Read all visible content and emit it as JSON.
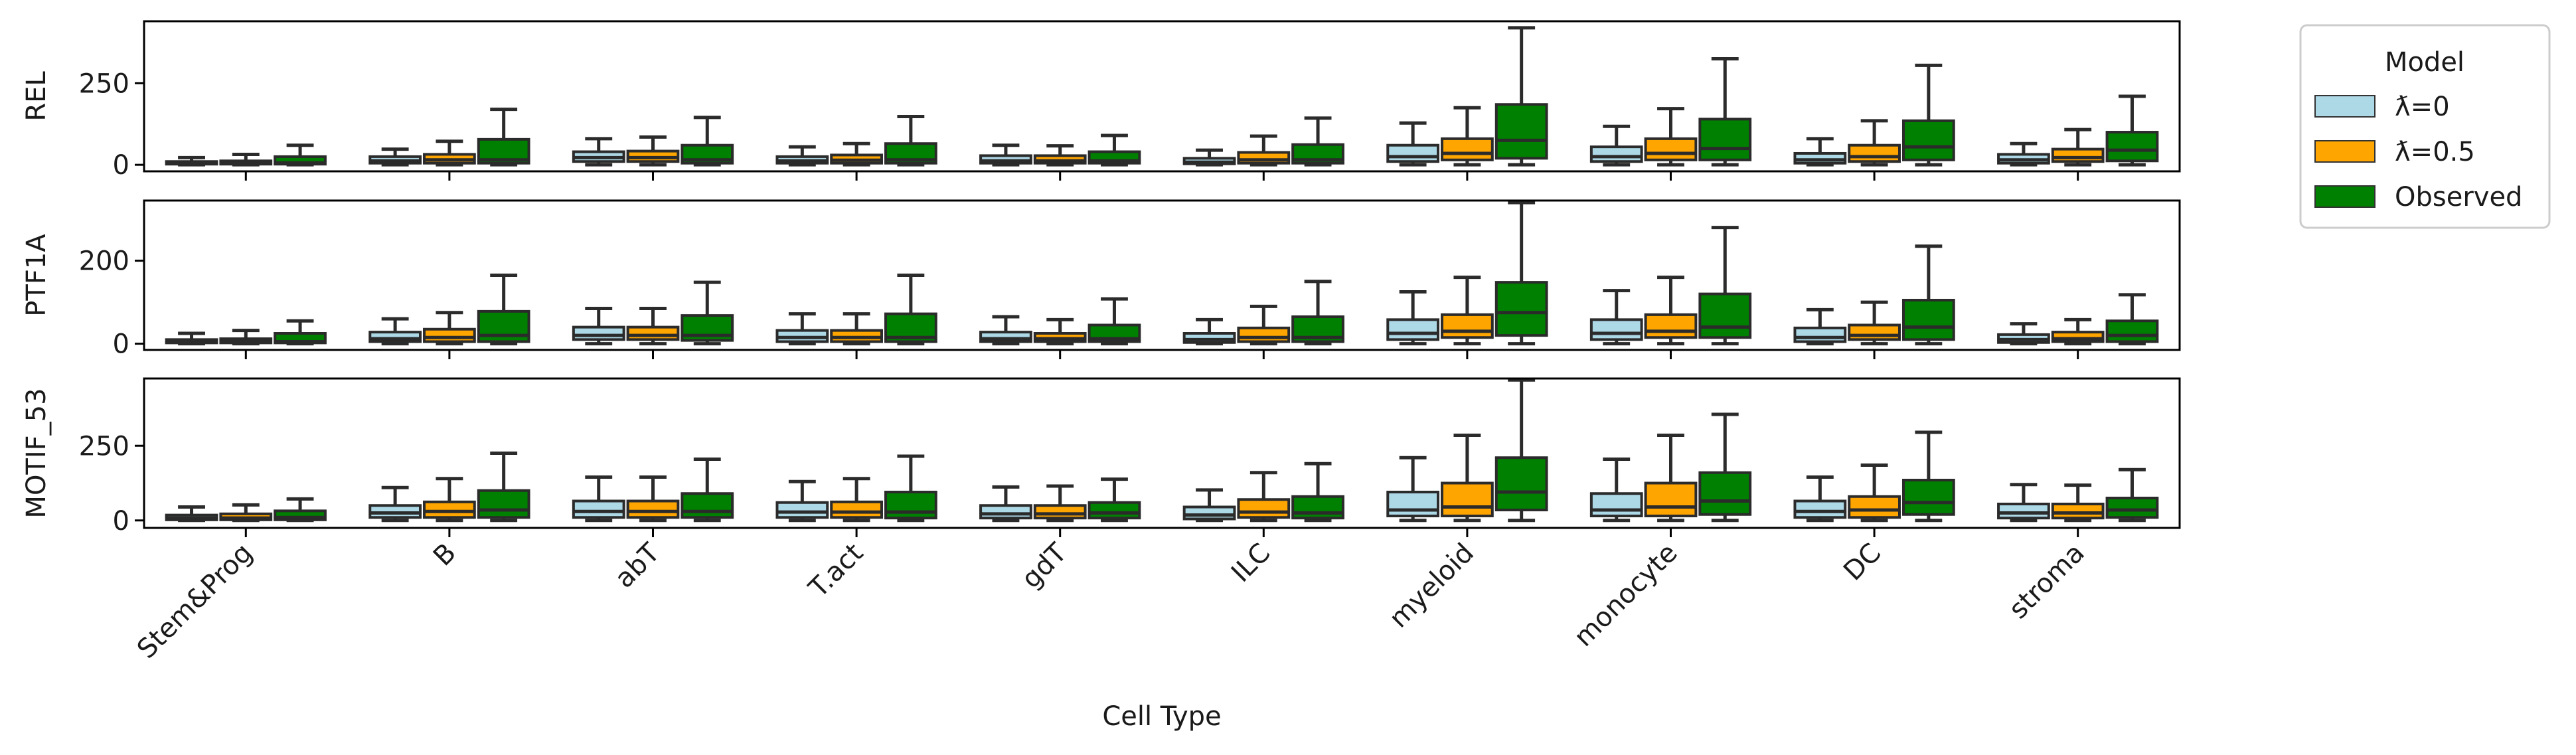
{
  "chart_data": {
    "type": "box",
    "xlabel": "Cell Type",
    "categories": [
      "Stem&Prog",
      "B",
      "abT",
      "T.act",
      "gdT",
      "ILC",
      "myeloid",
      "monocyte",
      "DC",
      "stroma"
    ],
    "legend": {
      "title": "Model",
      "position": "outside-right-top",
      "entries": [
        {
          "label": "ƛ=0",
          "color": "#add8e6"
        },
        {
          "label": "ƛ=0.5",
          "color": "#ffa500"
        },
        {
          "label": "Observed",
          "color": "#008000"
        }
      ]
    },
    "panels": [
      {
        "ylabel": "REL",
        "ylim": [
          -20,
          440
        ],
        "yticks": [
          0,
          250
        ],
        "series": [
          {
            "name": "ƛ=0",
            "color": "#add8e6",
            "boxes": [
              {
                "whislo": 0,
                "q1": 2,
                "med": 5,
                "q3": 10,
                "whishi": 22
              },
              {
                "whislo": 0,
                "q1": 5,
                "med": 12,
                "q3": 25,
                "whishi": 48
              },
              {
                "whislo": 0,
                "q1": 10,
                "med": 22,
                "q3": 40,
                "whishi": 80
              },
              {
                "whislo": 0,
                "q1": 5,
                "med": 12,
                "q3": 25,
                "whishi": 55
              },
              {
                "whislo": 0,
                "q1": 5,
                "med": 12,
                "q3": 28,
                "whishi": 60
              },
              {
                "whislo": 0,
                "q1": 3,
                "med": 8,
                "q3": 20,
                "whishi": 45
              },
              {
                "whislo": 0,
                "q1": 10,
                "med": 25,
                "q3": 60,
                "whishi": 128
              },
              {
                "whislo": 0,
                "q1": 10,
                "med": 25,
                "q3": 55,
                "whishi": 118
              },
              {
                "whislo": 0,
                "q1": 5,
                "med": 15,
                "q3": 35,
                "whishi": 80
              },
              {
                "whislo": 0,
                "q1": 5,
                "med": 15,
                "q3": 32,
                "whishi": 65
              }
            ]
          },
          {
            "name": "ƛ=0.5",
            "color": "#ffa500",
            "boxes": [
              {
                "whislo": 0,
                "q1": 2,
                "med": 5,
                "q3": 12,
                "whishi": 32
              },
              {
                "whislo": 0,
                "q1": 5,
                "med": 15,
                "q3": 32,
                "whishi": 72
              },
              {
                "whislo": 0,
                "q1": 10,
                "med": 22,
                "q3": 42,
                "whishi": 85
              },
              {
                "whislo": 0,
                "q1": 5,
                "med": 14,
                "q3": 30,
                "whishi": 65
              },
              {
                "whislo": 0,
                "q1": 5,
                "med": 12,
                "q3": 28,
                "whishi": 58
              },
              {
                "whislo": 0,
                "q1": 5,
                "med": 15,
                "q3": 38,
                "whishi": 88
              },
              {
                "whislo": 0,
                "q1": 15,
                "med": 35,
                "q3": 80,
                "whishi": 175
              },
              {
                "whislo": 0,
                "q1": 15,
                "med": 35,
                "q3": 80,
                "whishi": 172
              },
              {
                "whislo": 0,
                "q1": 10,
                "med": 25,
                "q3": 60,
                "whishi": 135
              },
              {
                "whislo": 0,
                "q1": 10,
                "med": 22,
                "q3": 48,
                "whishi": 108
              }
            ]
          },
          {
            "name": "Observed",
            "color": "#008000",
            "boxes": [
              {
                "whislo": 0,
                "q1": 2,
                "med": 6,
                "q3": 25,
                "whishi": 60
              },
              {
                "whislo": 0,
                "q1": 5,
                "med": 15,
                "q3": 78,
                "whishi": 170
              },
              {
                "whislo": 0,
                "q1": 5,
                "med": 15,
                "q3": 60,
                "whishi": 145
              },
              {
                "whislo": 0,
                "q1": 5,
                "med": 15,
                "q3": 65,
                "whishi": 148
              },
              {
                "whislo": 0,
                "q1": 5,
                "med": 12,
                "q3": 40,
                "whishi": 90
              },
              {
                "whislo": 0,
                "q1": 5,
                "med": 15,
                "q3": 62,
                "whishi": 143
              },
              {
                "whislo": 0,
                "q1": 20,
                "med": 75,
                "q3": 185,
                "whishi": 420
              },
              {
                "whislo": 0,
                "q1": 15,
                "med": 50,
                "q3": 140,
                "whishi": 325
              },
              {
                "whislo": 0,
                "q1": 15,
                "med": 55,
                "q3": 135,
                "whishi": 305
              },
              {
                "whislo": 0,
                "q1": 12,
                "med": 45,
                "q3": 100,
                "whishi": 210
              }
            ]
          }
        ]
      },
      {
        "ylabel": "PTF1A",
        "ylim": [
          -15,
          345
        ],
        "yticks": [
          0,
          200
        ],
        "series": [
          {
            "name": "ƛ=0",
            "color": "#add8e6",
            "boxes": [
              {
                "whislo": 0,
                "q1": 2,
                "med": 5,
                "q3": 10,
                "whishi": 25
              },
              {
                "whislo": 0,
                "q1": 5,
                "med": 12,
                "q3": 28,
                "whishi": 60
              },
              {
                "whislo": 0,
                "q1": 10,
                "med": 20,
                "q3": 40,
                "whishi": 85
              },
              {
                "whislo": 0,
                "q1": 5,
                "med": 15,
                "q3": 32,
                "whishi": 72
              },
              {
                "whislo": 0,
                "q1": 5,
                "med": 12,
                "q3": 28,
                "whishi": 65
              },
              {
                "whislo": 0,
                "q1": 3,
                "med": 10,
                "q3": 25,
                "whishi": 58
              },
              {
                "whislo": 0,
                "q1": 10,
                "med": 25,
                "q3": 58,
                "whishi": 125
              },
              {
                "whislo": 0,
                "q1": 10,
                "med": 25,
                "q3": 58,
                "whishi": 128
              },
              {
                "whislo": 0,
                "q1": 5,
                "med": 15,
                "q3": 38,
                "whishi": 82
              },
              {
                "whislo": 0,
                "q1": 3,
                "med": 10,
                "q3": 22,
                "whishi": 48
              }
            ]
          },
          {
            "name": "ƛ=0.5",
            "color": "#ffa500",
            "boxes": [
              {
                "whislo": 0,
                "q1": 2,
                "med": 5,
                "q3": 12,
                "whishi": 32
              },
              {
                "whislo": 0,
                "q1": 5,
                "med": 15,
                "q3": 35,
                "whishi": 75
              },
              {
                "whislo": 0,
                "q1": 10,
                "med": 20,
                "q3": 40,
                "whishi": 85
              },
              {
                "whislo": 0,
                "q1": 5,
                "med": 15,
                "q3": 32,
                "whishi": 72
              },
              {
                "whislo": 0,
                "q1": 5,
                "med": 12,
                "q3": 25,
                "whishi": 58
              },
              {
                "whislo": 0,
                "q1": 5,
                "med": 15,
                "q3": 38,
                "whishi": 90
              },
              {
                "whislo": 0,
                "q1": 15,
                "med": 30,
                "q3": 70,
                "whishi": 160
              },
              {
                "whislo": 0,
                "q1": 15,
                "med": 30,
                "q3": 70,
                "whishi": 160
              },
              {
                "whislo": 0,
                "q1": 10,
                "med": 20,
                "q3": 45,
                "whishi": 100
              },
              {
                "whislo": 0,
                "q1": 5,
                "med": 12,
                "q3": 28,
                "whishi": 58
              }
            ]
          },
          {
            "name": "Observed",
            "color": "#008000",
            "boxes": [
              {
                "whislo": 0,
                "q1": 2,
                "med": 5,
                "q3": 25,
                "whishi": 55
              },
              {
                "whislo": 0,
                "q1": 5,
                "med": 20,
                "q3": 78,
                "whishi": 165
              },
              {
                "whislo": 0,
                "q1": 8,
                "med": 20,
                "q3": 68,
                "whishi": 148
              },
              {
                "whislo": 0,
                "q1": 5,
                "med": 15,
                "q3": 72,
                "whishi": 165
              },
              {
                "whislo": 0,
                "q1": 5,
                "med": 12,
                "q3": 45,
                "whishi": 108
              },
              {
                "whislo": 0,
                "q1": 5,
                "med": 15,
                "q3": 65,
                "whishi": 150
              },
              {
                "whislo": 0,
                "q1": 20,
                "med": 75,
                "q3": 148,
                "whishi": 340
              },
              {
                "whislo": 0,
                "q1": 15,
                "med": 40,
                "q3": 120,
                "whishi": 280
              },
              {
                "whislo": 0,
                "q1": 10,
                "med": 40,
                "q3": 105,
                "whishi": 235
              },
              {
                "whislo": 0,
                "q1": 5,
                "med": 20,
                "q3": 55,
                "whishi": 118
              }
            ]
          }
        ]
      },
      {
        "ylabel": "MOTIF_53",
        "ylim": [
          -25,
          475
        ],
        "yticks": [
          0,
          250
        ],
        "series": [
          {
            "name": "ƛ=0",
            "color": "#add8e6",
            "boxes": [
              {
                "whislo": 0,
                "q1": 2,
                "med": 8,
                "q3": 18,
                "whishi": 45
              },
              {
                "whislo": 0,
                "q1": 10,
                "med": 25,
                "q3": 50,
                "whishi": 110
              },
              {
                "whislo": 0,
                "q1": 10,
                "med": 30,
                "q3": 65,
                "whishi": 145
              },
              {
                "whislo": 0,
                "q1": 10,
                "med": 28,
                "q3": 60,
                "whishi": 130
              },
              {
                "whislo": 0,
                "q1": 8,
                "med": 22,
                "q3": 50,
                "whishi": 112
              },
              {
                "whislo": 0,
                "q1": 5,
                "med": 18,
                "q3": 45,
                "whishi": 102
              },
              {
                "whislo": 0,
                "q1": 15,
                "med": 35,
                "q3": 95,
                "whishi": 210
              },
              {
                "whislo": 0,
                "q1": 15,
                "med": 35,
                "q3": 90,
                "whishi": 205
              },
              {
                "whislo": 0,
                "q1": 10,
                "med": 30,
                "q3": 65,
                "whishi": 145
              },
              {
                "whislo": 0,
                "q1": 8,
                "med": 25,
                "q3": 55,
                "whishi": 120
              }
            ]
          },
          {
            "name": "ƛ=0.5",
            "color": "#ffa500",
            "boxes": [
              {
                "whislo": 0,
                "q1": 2,
                "med": 8,
                "q3": 22,
                "whishi": 52
              },
              {
                "whislo": 0,
                "q1": 10,
                "med": 30,
                "q3": 62,
                "whishi": 140
              },
              {
                "whislo": 0,
                "q1": 10,
                "med": 30,
                "q3": 65,
                "whishi": 145
              },
              {
                "whislo": 0,
                "q1": 10,
                "med": 28,
                "q3": 62,
                "whishi": 140
              },
              {
                "whislo": 0,
                "q1": 8,
                "med": 22,
                "q3": 50,
                "whishi": 115
              },
              {
                "whislo": 0,
                "q1": 10,
                "med": 28,
                "q3": 70,
                "whishi": 160
              },
              {
                "whislo": 0,
                "q1": 15,
                "med": 45,
                "q3": 125,
                "whishi": 285
              },
              {
                "whislo": 0,
                "q1": 15,
                "med": 45,
                "q3": 125,
                "whishi": 285
              },
              {
                "whislo": 0,
                "q1": 10,
                "med": 35,
                "q3": 80,
                "whishi": 185
              },
              {
                "whislo": 0,
                "q1": 8,
                "med": 25,
                "q3": 55,
                "whishi": 118
              }
            ]
          },
          {
            "name": "Observed",
            "color": "#008000",
            "boxes": [
              {
                "whislo": 0,
                "q1": 2,
                "med": 10,
                "q3": 32,
                "whishi": 72
              },
              {
                "whislo": 0,
                "q1": 10,
                "med": 35,
                "q3": 100,
                "whishi": 225
              },
              {
                "whislo": 0,
                "q1": 10,
                "med": 30,
                "q3": 90,
                "whishi": 205
              },
              {
                "whislo": 0,
                "q1": 8,
                "med": 28,
                "q3": 95,
                "whishi": 215
              },
              {
                "whislo": 0,
                "q1": 8,
                "med": 25,
                "q3": 60,
                "whishi": 138
              },
              {
                "whislo": 0,
                "q1": 8,
                "med": 25,
                "q3": 80,
                "whishi": 190
              },
              {
                "whislo": 0,
                "q1": 35,
                "med": 95,
                "q3": 210,
                "whishi": 470
              },
              {
                "whislo": 0,
                "q1": 20,
                "med": 65,
                "q3": 160,
                "whishi": 355
              },
              {
                "whislo": 0,
                "q1": 20,
                "med": 60,
                "q3": 135,
                "whishi": 295
              },
              {
                "whislo": 0,
                "q1": 10,
                "med": 35,
                "q3": 75,
                "whishi": 170
              }
            ]
          }
        ]
      }
    ]
  }
}
